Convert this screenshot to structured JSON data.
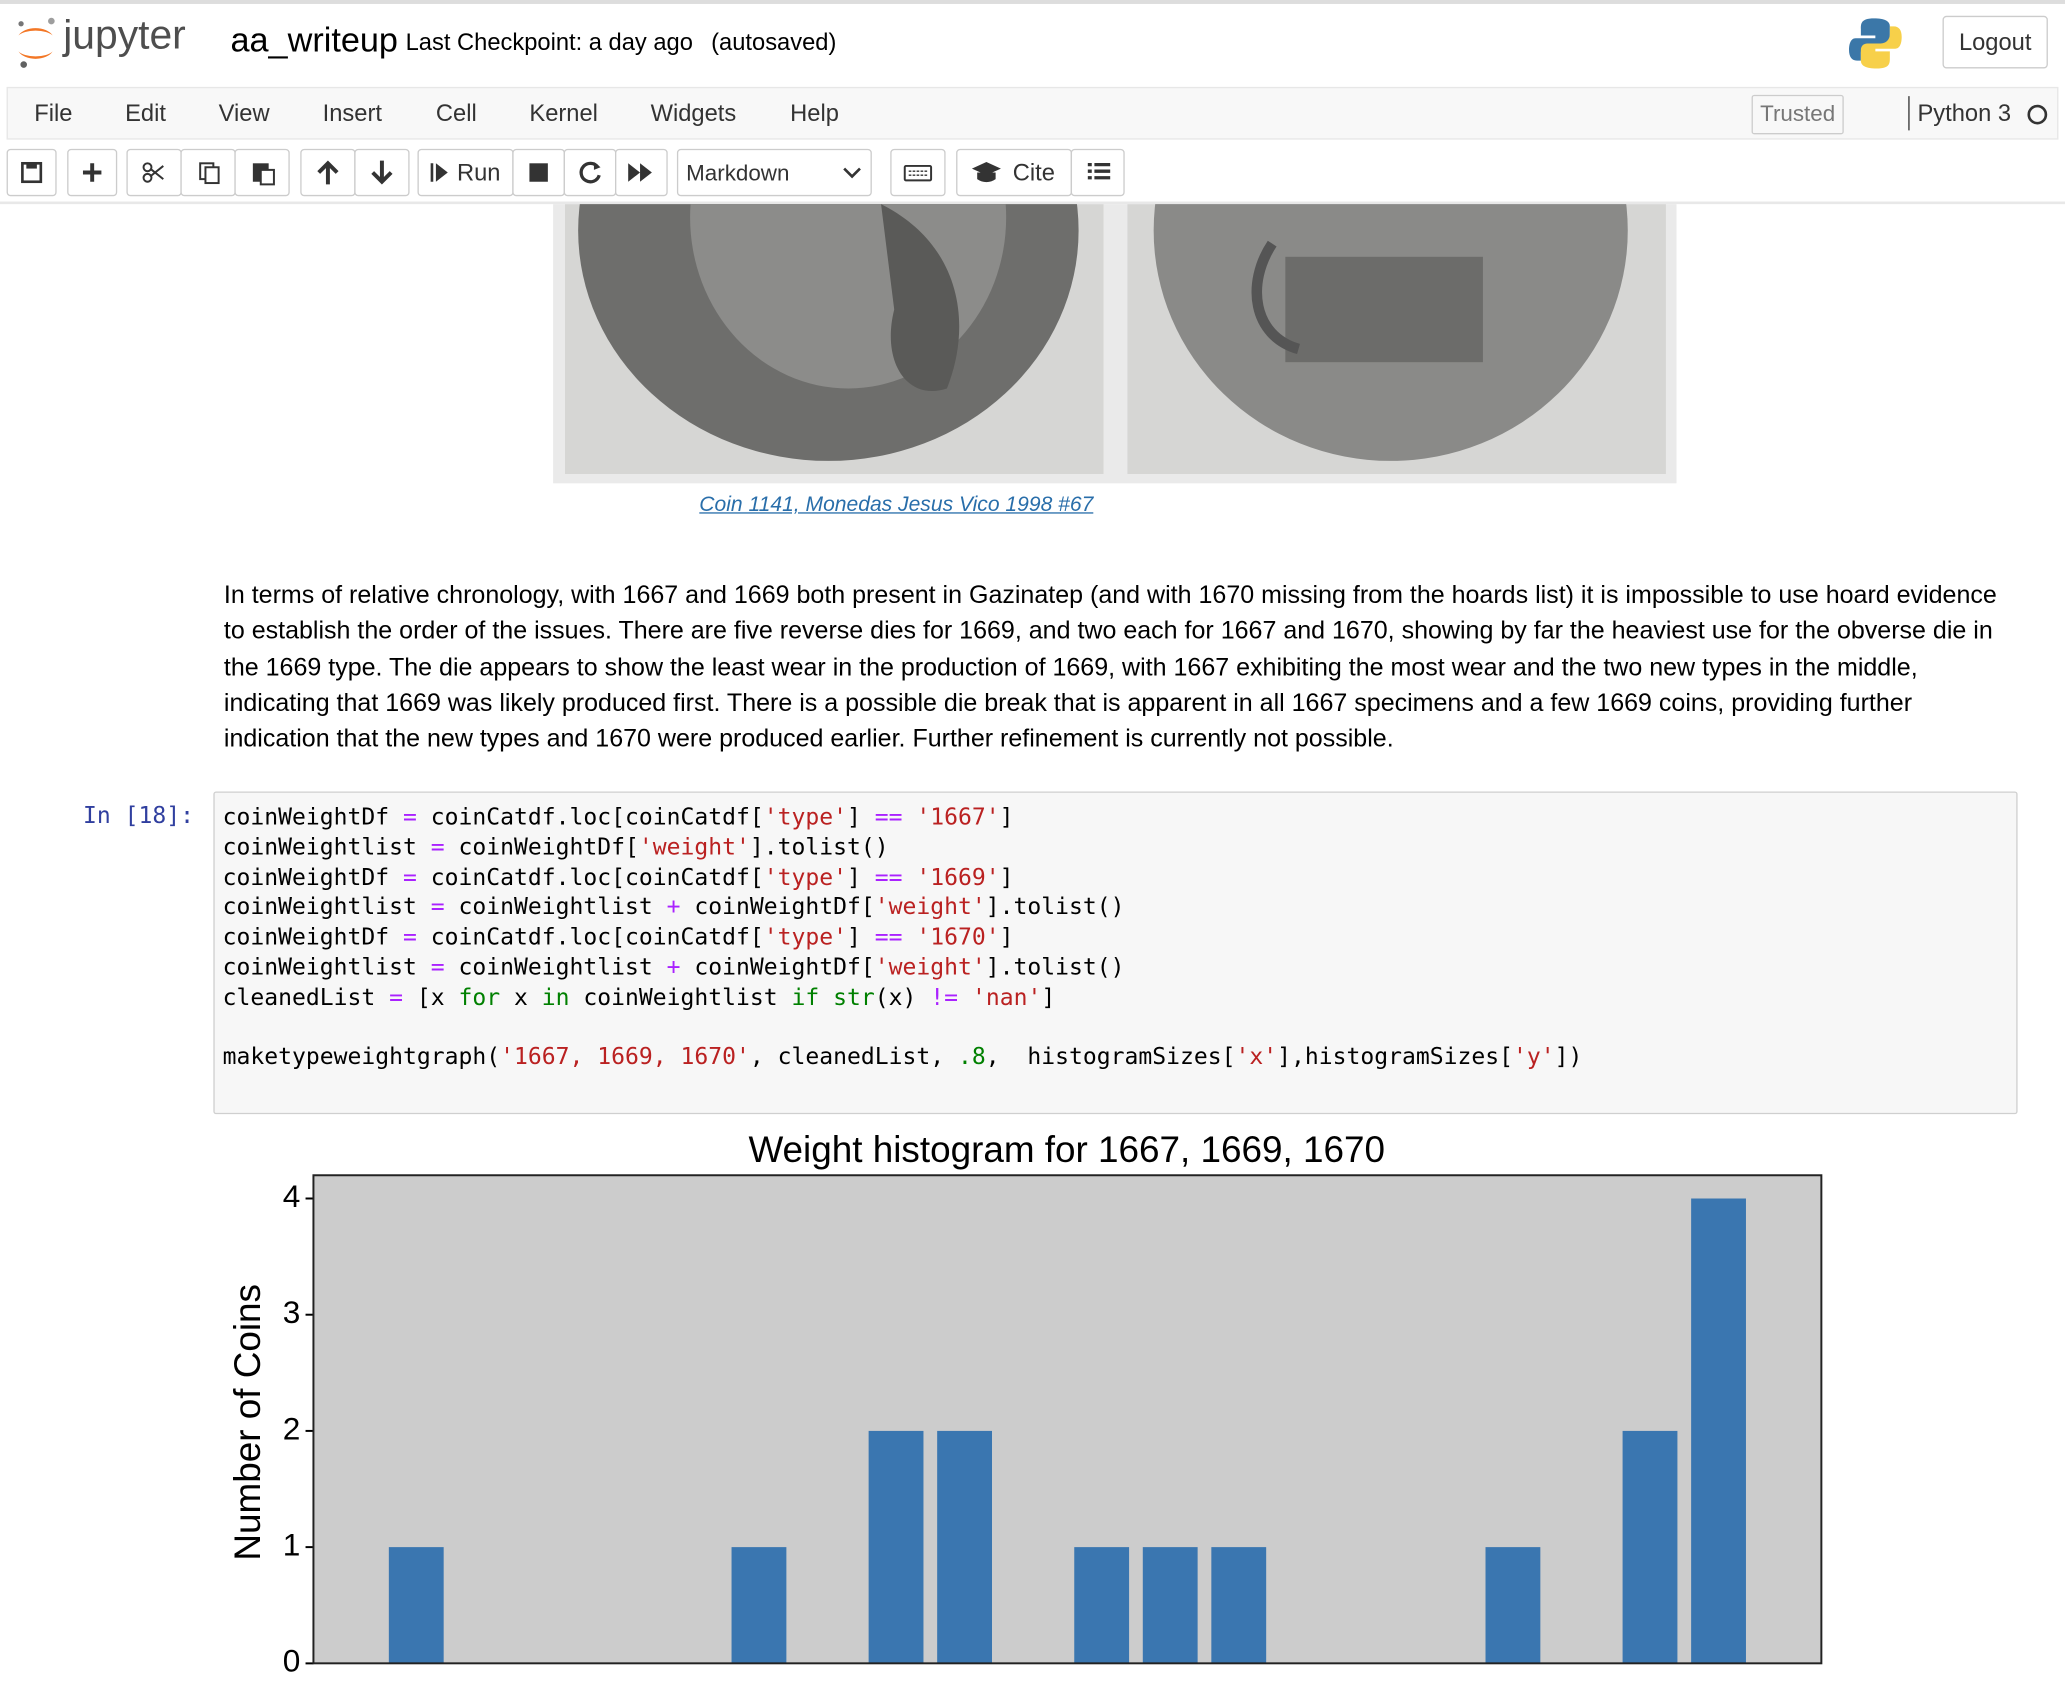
{
  "header": {
    "logo": "jupyter",
    "notebook_name": "aa_writeup",
    "checkpoint": "Last Checkpoint: a day ago",
    "autosave": "(autosaved)",
    "logout": "Logout"
  },
  "menu": {
    "items": [
      "File",
      "Edit",
      "View",
      "Insert",
      "Cell",
      "Kernel",
      "Widgets",
      "Help"
    ],
    "trusted": "Trusted",
    "kernel": "Python 3"
  },
  "toolbar": {
    "run": "Run",
    "cell_type": "Markdown",
    "cite": "Cite"
  },
  "image_cell": {
    "caption": "Coin 1141, Monedas Jesus Vico 1998 #67"
  },
  "markdown_cell": {
    "text": "In terms of relative chronology, with 1667 and 1669 both present in Gazinatep (and with 1670 missing from the hoards list) it is impossible to use hoard evidence to establish the order of the issues. There are five reverse dies for 1669, and two each for 1667 and 1670, showing by far the heaviest use for the obverse die in the 1669 type. The die appears to show the least wear in the production of 1669, with 1667 exhibiting the most wear and the two new types in the middle, indicating that 1669 was likely produced first. There is a possible die break that is apparent in all 1667 specimens and a few 1669 coins, providing further indication that the new types and 1670 were produced earlier. Further refinement is currently not possible."
  },
  "code_cell": {
    "prompt": "In [18]:",
    "lines": [
      [
        "coinWeightDf ",
        {
          "text": "=",
          "color": "#aa22ff"
        },
        " coinCatdf.loc[coinCatdf[",
        {
          "text": "'type'",
          "color": "#ba2121"
        },
        "] ",
        {
          "text": "==",
          "color": "#aa22ff"
        },
        " ",
        {
          "text": "'1667'",
          "color": "#ba2121"
        },
        "]"
      ],
      [
        "coinWeightlist ",
        {
          "text": "=",
          "color": "#aa22ff"
        },
        " coinWeightDf[",
        {
          "text": "'weight'",
          "color": "#ba2121"
        },
        "].tolist()"
      ],
      [
        "coinWeightDf ",
        {
          "text": "=",
          "color": "#aa22ff"
        },
        " coinCatdf.loc[coinCatdf[",
        {
          "text": "'type'",
          "color": "#ba2121"
        },
        "] ",
        {
          "text": "==",
          "color": "#aa22ff"
        },
        " ",
        {
          "text": "'1669'",
          "color": "#ba2121"
        },
        "]"
      ],
      [
        "coinWeightlist ",
        {
          "text": "=",
          "color": "#aa22ff"
        },
        " coinWeightlist ",
        {
          "text": "+",
          "color": "#aa22ff"
        },
        " coinWeightDf[",
        {
          "text": "'weight'",
          "color": "#ba2121"
        },
        "].tolist()"
      ],
      [
        "coinWeightDf ",
        {
          "text": "=",
          "color": "#aa22ff"
        },
        " coinCatdf.loc[coinCatdf[",
        {
          "text": "'type'",
          "color": "#ba2121"
        },
        "] ",
        {
          "text": "==",
          "color": "#aa22ff"
        },
        " ",
        {
          "text": "'1670'",
          "color": "#ba2121"
        },
        "]"
      ],
      [
        "coinWeightlist ",
        {
          "text": "=",
          "color": "#aa22ff"
        },
        " coinWeightlist ",
        {
          "text": "+",
          "color": "#aa22ff"
        },
        " coinWeightDf[",
        {
          "text": "'weight'",
          "color": "#ba2121"
        },
        "].tolist()"
      ],
      [
        "cleanedList ",
        {
          "text": "=",
          "color": "#aa22ff"
        },
        " [x ",
        {
          "text": "for",
          "color": "#008000"
        },
        " x ",
        {
          "text": "in",
          "color": "#008000"
        },
        " coinWeightlist ",
        {
          "text": "if",
          "color": "#008000"
        },
        " ",
        {
          "text": "str",
          "color": "#008000"
        },
        "(x) ",
        {
          "text": "!=",
          "color": "#aa22ff"
        },
        " ",
        {
          "text": "'nan'",
          "color": "#ba2121"
        },
        "]"
      ],
      [],
      [
        "maketypeweightgraph(",
        {
          "text": "'1667, 1669, 1670'",
          "color": "#ba2121"
        },
        ", cleanedList, ",
        {
          "text": ".8",
          "color": "#008000"
        },
        ",  histogramSizes[",
        {
          "text": "'x'",
          "color": "#ba2121"
        },
        "],histogramSizes[",
        {
          "text": "'y'",
          "color": "#ba2121"
        },
        "])"
      ]
    ]
  },
  "chart_data": {
    "type": "bar",
    "title": "Weight histogram for 1667, 1669, 1670",
    "ylabel": "Number of Coins",
    "categories": [
      null,
      null,
      null,
      null,
      null,
      null,
      null,
      null,
      null,
      null,
      null,
      null,
      null,
      null,
      null,
      null,
      null,
      null,
      null,
      null
    ],
    "values": [
      1,
      0,
      0,
      0,
      0,
      1,
      0,
      2,
      2,
      0,
      1,
      1,
      1,
      0,
      0,
      0,
      1,
      0,
      2,
      4
    ],
    "color": "#3a76b0",
    "background": "#cccccc",
    "ylim": [
      0,
      4.2
    ],
    "yticks": [
      0,
      1,
      2,
      3,
      4
    ]
  }
}
